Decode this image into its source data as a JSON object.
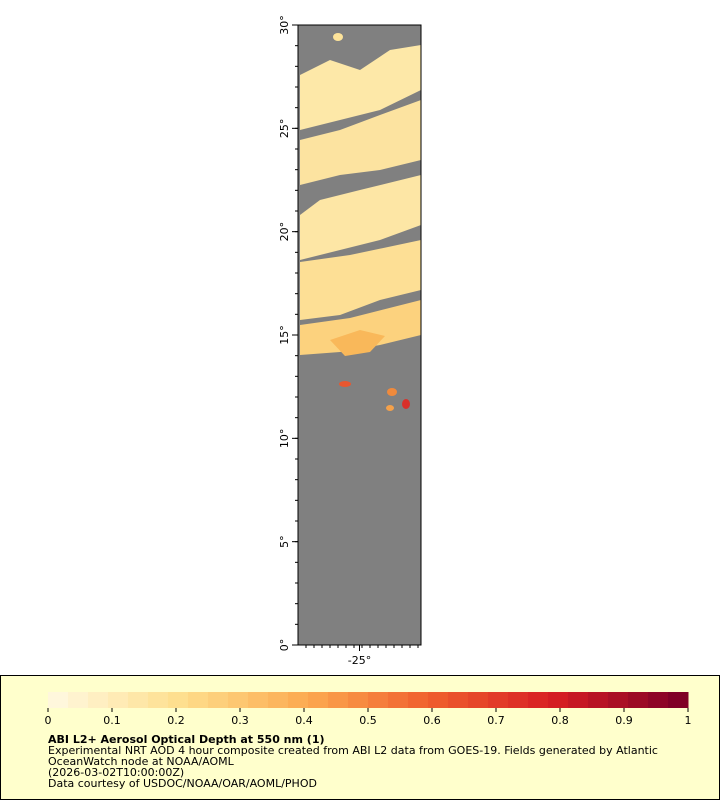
{
  "map": {
    "lat_labels": [
      "30°",
      "25°",
      "20°",
      "15°",
      "10°",
      "5°",
      "0°"
    ],
    "lon_labels": [
      "-25°"
    ]
  },
  "colorbar": {
    "ticks": [
      0,
      0.1,
      0.2,
      0.3,
      0.4,
      0.5,
      0.6,
      0.7,
      0.8,
      0.9,
      1
    ]
  },
  "legend": {
    "title": "ABI L2+ Aerosol Optical Depth at 550 nm (1)",
    "lines": [
      "Experimental NRT AOD 4 hour composite created from ABI L2 data from GOES-19. Fields generated by Atlantic",
      "OceanWatch node at NOAA/AOML",
      "(2026-03-02T10:00:00Z)",
      "Data courtesy of USDOC/NOAA/OAR/AOML/PHOD"
    ]
  }
}
